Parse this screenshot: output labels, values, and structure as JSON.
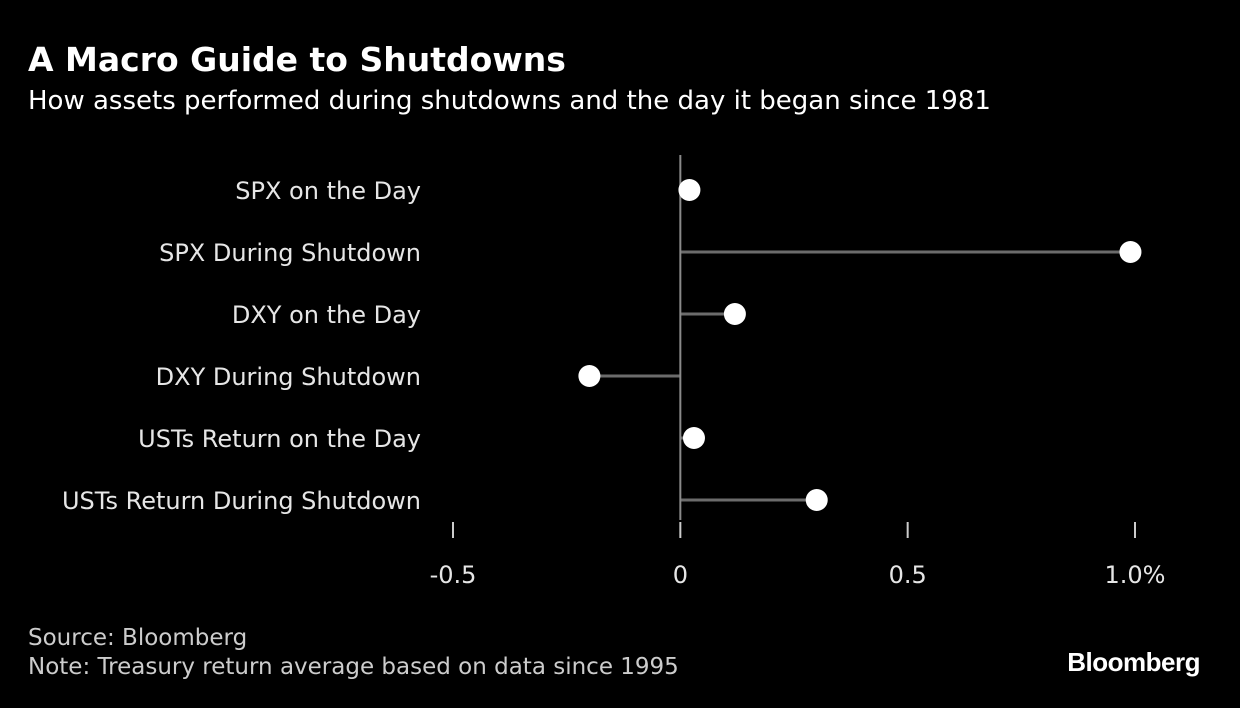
{
  "title": "A Macro Guide to Shutdowns",
  "subtitle": "How assets performed during shutdowns and the day it began since 1981",
  "source": "Source: Bloomberg",
  "note": "Note: Treasury return average based on data since 1995",
  "brand": "Bloomberg",
  "colors": {
    "background": "#000000",
    "text": "#ffffff",
    "muted_text": "#cccccc",
    "axis": "#8a8a8a",
    "stem": "#6b6b6b",
    "dot": "#ffffff"
  },
  "chart_data": {
    "type": "scatter",
    "style": "lollipop-horizontal",
    "categories": [
      "SPX on the Day",
      "SPX During Shutdown",
      "DXY on the Day",
      "DXY During Shutdown",
      "USTs Return on the Day",
      "USTs Return During Shutdown"
    ],
    "values": [
      0.02,
      0.99,
      0.12,
      -0.2,
      0.03,
      0.3
    ],
    "xlim": [
      -0.5,
      1.0
    ],
    "xticks": [
      -0.5,
      0,
      0.5,
      1.0
    ],
    "xtick_labels": [
      "-0.5",
      "0",
      "0.5",
      "1.0%"
    ],
    "grid": false,
    "legend": "none"
  }
}
